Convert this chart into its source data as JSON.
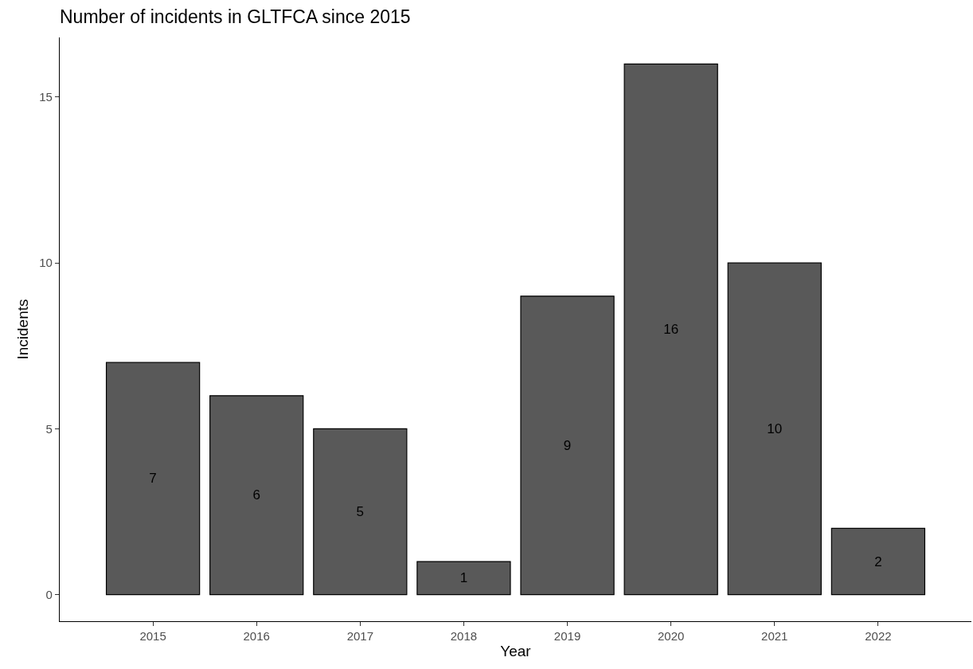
{
  "chart_data": {
    "type": "bar",
    "title": "Number of incidents in GLTFCA since 2015",
    "xlabel": "Year",
    "ylabel": "Incidents",
    "categories": [
      "2015",
      "2016",
      "2017",
      "2018",
      "2019",
      "2020",
      "2021",
      "2022"
    ],
    "values": [
      7,
      6,
      5,
      1,
      9,
      16,
      10,
      2
    ],
    "color": "#595959",
    "ylim": [
      -0.8,
      16.8
    ],
    "yticks": [
      0,
      5,
      10,
      15
    ],
    "grid": false,
    "legend": false,
    "data_labels": true
  }
}
